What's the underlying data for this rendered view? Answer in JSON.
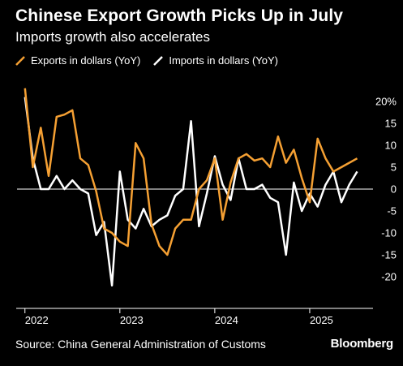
{
  "header": {
    "title": "Chinese Export Growth Picks Up in July",
    "subtitle": "Imports growth also accelerates"
  },
  "footer": {
    "source": "Source: China General Administration of Customs",
    "brand": "Bloomberg"
  },
  "colors": {
    "exports": "#f5a033",
    "imports": "#ffffff",
    "background": "#000000"
  },
  "chart_data": {
    "type": "line",
    "x_start": "2022-01",
    "x_range": [
      "2021-12",
      "2025-09"
    ],
    "ylim": [
      -25,
      20
    ],
    "y_ticks": [
      20,
      15,
      10,
      5,
      0,
      -5,
      -10,
      -15,
      -20
    ],
    "y_tick_labels": [
      "20%",
      "15",
      "10",
      "5",
      "0",
      "-5",
      "-10",
      "-15",
      "-20"
    ],
    "x_tick_labels": [
      "2022",
      "2023",
      "2024",
      "2025"
    ],
    "x_tick_dates": [
      "2022-01",
      "2023-01",
      "2024-01",
      "2025-01"
    ],
    "legend_position": "top-left",
    "grid": false,
    "series": [
      {
        "name": "Exports in dollars (YoY)",
        "key": "exports",
        "x": [
          "2022-01",
          "2022-02",
          "2022-03",
          "2022-04",
          "2022-05",
          "2022-06",
          "2022-07",
          "2022-08",
          "2022-09",
          "2022-10",
          "2022-11",
          "2022-12",
          "2023-01",
          "2023-02",
          "2023-03",
          "2023-04",
          "2023-05",
          "2023-06",
          "2023-07",
          "2023-08",
          "2023-09",
          "2023-10",
          "2023-11",
          "2023-12",
          "2024-01",
          "2024-02",
          "2024-03",
          "2024-04",
          "2024-05",
          "2024-06",
          "2024-07",
          "2024-08",
          "2024-09",
          "2024-10",
          "2024-11",
          "2024-12",
          "2025-01",
          "2025-02",
          "2025-03",
          "2025-04",
          "2025-05",
          "2025-06",
          "2025-07"
        ],
        "values": [
          23,
          5,
          14,
          3,
          16.5,
          17,
          18,
          7,
          5.5,
          -0.5,
          -9,
          -10,
          -12,
          -13,
          10.5,
          7,
          -8,
          -13,
          -15,
          -9,
          -7,
          -7,
          0,
          2,
          7,
          -7,
          1.5,
          7,
          8,
          6.5,
          7,
          5,
          12,
          6,
          9,
          2.5,
          -3,
          11.5,
          7,
          4,
          5,
          6,
          7
        ]
      },
      {
        "name": "Imports in dollars (YoY)",
        "key": "imports",
        "x": [
          "2022-01",
          "2022-02",
          "2022-03",
          "2022-04",
          "2022-05",
          "2022-06",
          "2022-07",
          "2022-08",
          "2022-09",
          "2022-10",
          "2022-11",
          "2022-12",
          "2023-01",
          "2023-02",
          "2023-03",
          "2023-04",
          "2023-05",
          "2023-06",
          "2023-07",
          "2023-08",
          "2023-09",
          "2023-10",
          "2023-11",
          "2023-12",
          "2024-01",
          "2024-02",
          "2024-03",
          "2024-04",
          "2024-05",
          "2024-06",
          "2024-07",
          "2024-08",
          "2024-09",
          "2024-10",
          "2024-11",
          "2024-12",
          "2025-01",
          "2025-02",
          "2025-03",
          "2025-04",
          "2025-05",
          "2025-06",
          "2025-07"
        ],
        "values": [
          21,
          7,
          0,
          0,
          3,
          0,
          2,
          0,
          -1,
          -10.5,
          -7.5,
          -22,
          4,
          -7,
          -9,
          -4.5,
          -8.5,
          -7,
          -6,
          -1.5,
          0,
          15.5,
          -8.5,
          -1,
          7.5,
          1,
          -2.5,
          7,
          0,
          0,
          1,
          -2,
          -3,
          -15,
          1.5,
          -5,
          -1,
          -4,
          1,
          4,
          -3,
          1,
          4
        ]
      }
    ]
  }
}
